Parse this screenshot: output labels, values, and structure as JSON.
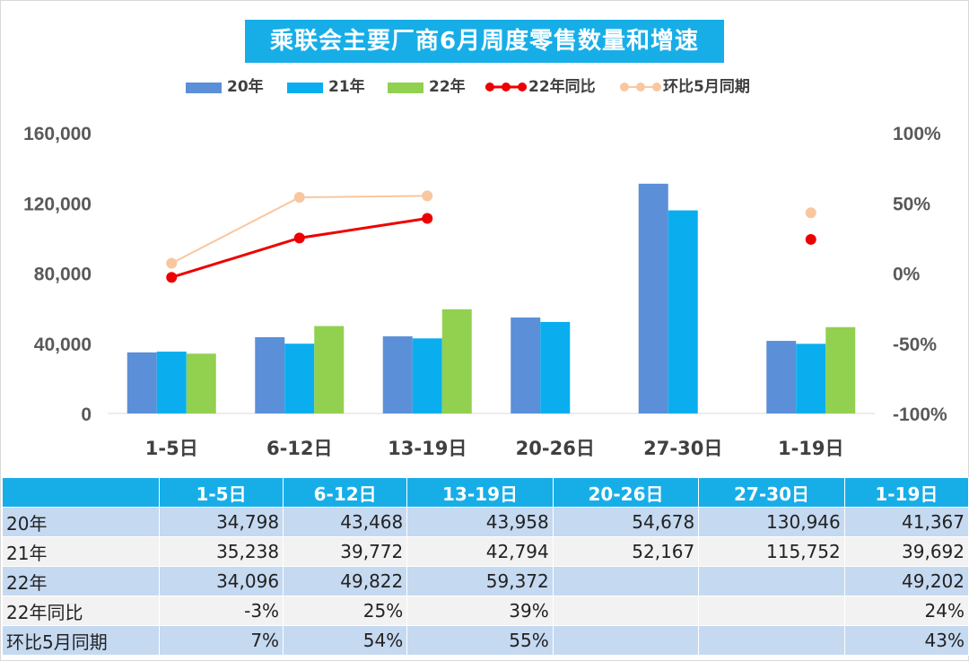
{
  "title": "乘联会主要厂商6月周度零售数量和增速",
  "legend": [
    {
      "label": "20年",
      "color": "#5b8fd8",
      "kind": "bar"
    },
    {
      "label": "21年",
      "color": "#0aaeef",
      "kind": "bar"
    },
    {
      "label": "22年",
      "color": "#92d050",
      "kind": "bar"
    },
    {
      "label": "22年同比",
      "color": "#ee0000",
      "kind": "line"
    },
    {
      "label": "环比5月同期",
      "color": "#f8c7a0",
      "kind": "line"
    }
  ],
  "chart_data": {
    "type": "bar",
    "categories": [
      "1-5日",
      "6-12日",
      "13-19日",
      "20-26日",
      "27-30日",
      "1-19日"
    ],
    "series": [
      {
        "name": "20年",
        "type": "bar",
        "axis": "left",
        "values": [
          34798,
          43468,
          43958,
          54678,
          130946,
          41367
        ]
      },
      {
        "name": "21年",
        "type": "bar",
        "axis": "left",
        "values": [
          35238,
          39772,
          42794,
          52167,
          115752,
          39692
        ]
      },
      {
        "name": "22年",
        "type": "bar",
        "axis": "left",
        "values": [
          34096,
          49822,
          59372,
          null,
          null,
          49202
        ]
      },
      {
        "name": "22年同比",
        "type": "line",
        "axis": "right",
        "values": [
          -3,
          25,
          39,
          null,
          null,
          24
        ]
      },
      {
        "name": "环比5月同期",
        "type": "line",
        "axis": "right",
        "values": [
          7,
          54,
          55,
          null,
          null,
          43
        ]
      }
    ],
    "y_left": {
      "min": 0,
      "max": 160000,
      "ticks": [
        "0",
        "40,000",
        "80,000",
        "120,000",
        "160,000"
      ]
    },
    "y_right": {
      "min": -100,
      "max": 100,
      "ticks": [
        "-100%",
        "-50%",
        "0%",
        "50%",
        "100%"
      ]
    },
    "grid": false,
    "legend_position": "top"
  },
  "table": {
    "header": [
      "",
      "1-5日",
      "6-12日",
      "13-19日",
      "20-26日",
      "27-30日",
      "1-19日"
    ],
    "rows": [
      [
        "20年",
        "34,798",
        "43,468",
        "43,958",
        "54,678",
        "130,946",
        "41,367"
      ],
      [
        "21年",
        "35,238",
        "39,772",
        "42,794",
        "52,167",
        "115,752",
        "39,692"
      ],
      [
        "22年",
        "34,096",
        "49,822",
        "59,372",
        "",
        "",
        "49,202"
      ],
      [
        "22年同比",
        "-3%",
        "25%",
        "39%",
        "",
        "",
        "24%"
      ],
      [
        "环比5月同期",
        "7%",
        "54%",
        "55%",
        "",
        "",
        "43%"
      ]
    ]
  }
}
